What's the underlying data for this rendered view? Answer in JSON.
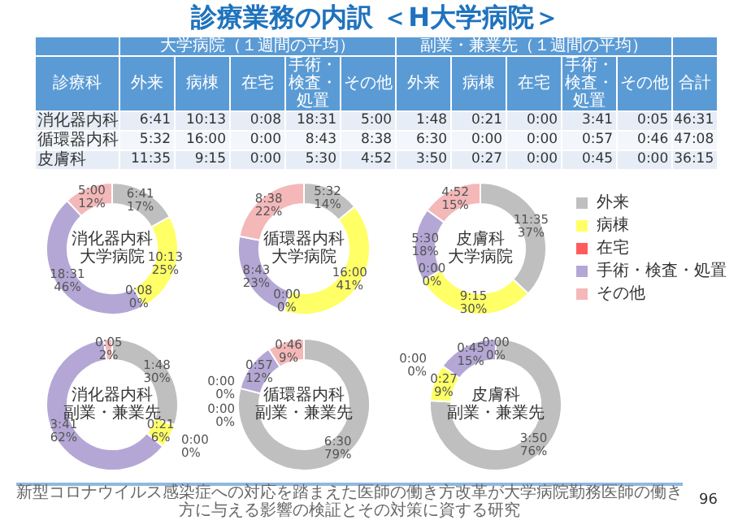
{
  "chart_data": [
    {
      "type": "other",
      "title": "診療業務の内訳 ＜H大学病院＞",
      "categories": [
        "診療科",
        "外来",
        "病棟",
        "在宅",
        "手術・検査・処置",
        "その他",
        "外来",
        "病棟",
        "在宅",
        "手術・検査・処置",
        "その他",
        "合計"
      ],
      "y_categories": [
        "消化器内科",
        "循環器内科",
        "皮膚科"
      ],
      "annotations": [
        "大学病院（１週間の平均）",
        "副業・兼業先（１週間の平均）",
        "6:41",
        "10:13",
        "0:08",
        "18:31",
        "5:00",
        "1:48",
        "0:21",
        "0:00",
        "3:41",
        "0:05",
        "46:31",
        "5:32",
        "16:00",
        "0:00",
        "8:43",
        "8:38",
        "6:30",
        "0:00",
        "0:00",
        "0:57",
        "0:46",
        "47:08",
        "11:35",
        "9:15",
        "0:00",
        "5:30",
        "4:52",
        "3:50",
        "0:27",
        "0:00",
        "0:45",
        "0:00",
        "36:15",
        "新型コロナウイルス感染症への対応を踏まえた医師の働き方改革が大学病院勤務医師の働き方に与える影響の検証とその対策に資する研究",
        "96"
      ]
    },
    {
      "type": "donut",
      "title": "消化器内科",
      "subtitle": "大学病院",
      "categories": [
        null,
        null,
        null,
        null,
        null
      ],
      "colors": [
        "#bfbfbf",
        "#ffff66",
        "#ff5b5b",
        "#b4a7d6",
        "#f4b8b8"
      ],
      "values": [
        17,
        25,
        0,
        46,
        12
      ],
      "value_labels": [
        "6:41\n17%",
        "10:13\n25%",
        "0:08\n0%",
        "18:31\n46%",
        "5:00\n12%"
      ]
    },
    {
      "type": "donut",
      "title": "循環器内科",
      "subtitle": "大学病院",
      "categories": [
        null,
        null,
        null,
        null,
        null
      ],
      "colors": [
        "#bfbfbf",
        "#ffff66",
        "#ff5b5b",
        "#b4a7d6",
        "#f4b8b8"
      ],
      "values": [
        14,
        41,
        0,
        23,
        22
      ],
      "value_labels": [
        "5:32\n14%",
        "16:00\n41%",
        "0:00\n0%",
        "8:43\n23%",
        "8:38\n22%"
      ]
    },
    {
      "type": "donut",
      "title": "皮膚科",
      "subtitle": "大学病院",
      "categories": [
        "外来",
        "病棟",
        "在宅",
        "手術・検査・処置",
        "その他"
      ],
      "colors": [
        "#bfbfbf",
        "#ffff66",
        "#ff5b5b",
        "#b4a7d6",
        "#f4b8b8"
      ],
      "values": [
        37,
        30,
        0,
        18,
        15
      ],
      "value_labels": [
        "11:35\n37%",
        "9:15\n30%",
        "0:00\n0%",
        "5:30\n18%",
        "4:52\n15%"
      ],
      "legend": "right"
    },
    {
      "type": "donut",
      "title": "消化器内科",
      "subtitle": "副業・兼業先",
      "categories": [
        null,
        null,
        null,
        null,
        null
      ],
      "colors": [
        "#bfbfbf",
        "#ffff66",
        "#ff5b5b",
        "#b4a7d6",
        "#f4b8b8"
      ],
      "values": [
        30,
        6,
        0,
        62,
        2
      ],
      "value_labels": [
        "1:48\n30%",
        "0:21\n6%",
        "0:00\n0%",
        "3:41\n62%",
        "0:05\n2%"
      ]
    },
    {
      "type": "donut",
      "title": "循環器内科",
      "subtitle": "副業・兼業先",
      "categories": [
        null,
        null,
        null,
        null,
        null
      ],
      "colors": [
        "#bfbfbf",
        "#ffff66",
        "#ff5b5b",
        "#b4a7d6",
        "#f4b8b8"
      ],
      "values": [
        79,
        0,
        0,
        12,
        9
      ],
      "value_labels": [
        "6:30\n79%",
        "0:00\n0%",
        "0:00\n0%",
        "0:57\n12%",
        "0:46\n9%"
      ]
    },
    {
      "type": "donut",
      "title": "皮膚科",
      "subtitle": "副業・兼業先",
      "categories": [
        null,
        null,
        null,
        null,
        null
      ],
      "colors": [
        "#bfbfbf",
        "#ffff66",
        "#ff5b5b",
        "#b4a7d6",
        "#f4b8b8"
      ],
      "values": [
        76,
        9,
        0,
        15,
        0
      ],
      "value_labels": [
        "3:50\n76%",
        "0:27\n9%",
        "0:00\n0%",
        "0:45\n15%",
        "0:00\n0%"
      ]
    }
  ]
}
